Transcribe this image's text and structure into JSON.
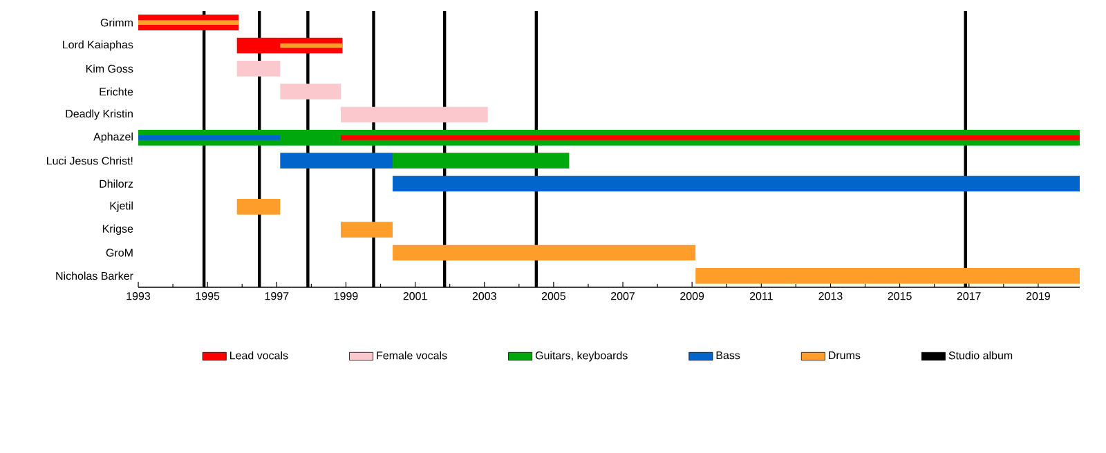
{
  "chart_data": {
    "type": "bar",
    "orientation": "horizontal",
    "categories": [
      "Grimm",
      "Lord Kaiaphas",
      "Kim Goss",
      "Erichte",
      "Deadly Kristin",
      "Aphazel",
      "Luci Jesus Christ!",
      "Dhilorz",
      "Kjetil",
      "Krigse",
      "GroM",
      "Nicholas Barker"
    ],
    "series": [
      {
        "name": "Lead vocals",
        "color": "#ff0000",
        "base": [
          1993,
          1995.85,
          null,
          null,
          null,
          null,
          null,
          null,
          null,
          null,
          null,
          null
        ],
        "values": [
          2.9,
          3.05,
          null,
          null,
          null,
          null,
          null,
          null,
          null,
          null,
          null,
          null
        ]
      },
      {
        "name": "Female vocals",
        "color": "#fbc9cd",
        "base": [
          null,
          null,
          1995.85,
          1997.1,
          1998.85,
          null,
          null,
          null,
          null,
          null,
          null,
          null
        ],
        "values": [
          null,
          null,
          1.25,
          1.75,
          4.25,
          null,
          null,
          null,
          null,
          null,
          null,
          null
        ]
      },
      {
        "name": "Guitars, keyboards",
        "color": "#00a80e",
        "base": [
          null,
          null,
          null,
          null,
          null,
          1993,
          2000.35,
          null,
          null,
          null,
          null,
          null
        ],
        "values": [
          null,
          null,
          null,
          null,
          null,
          27.2,
          5.1,
          null,
          null,
          null,
          null,
          null
        ]
      },
      {
        "name": "Bass",
        "color": "#0066cc",
        "base": [
          null,
          null,
          null,
          null,
          null,
          null,
          1997.1,
          2000.35,
          null,
          null,
          null,
          null
        ],
        "values": [
          null,
          null,
          null,
          null,
          null,
          null,
          3.25,
          19.85,
          null,
          null,
          null,
          null
        ]
      },
      {
        "name": "Drums",
        "color": "#ff9e2a",
        "base": [
          null,
          null,
          null,
          null,
          null,
          null,
          null,
          null,
          1995.85,
          1998.85,
          2000.35,
          2009.1
        ],
        "values": [
          null,
          null,
          null,
          null,
          null,
          null,
          null,
          null,
          1.25,
          1.5,
          8.75,
          11.1
        ]
      },
      {
        "color": "#ff9e2a",
        "base": [
          1993,
          1997.1,
          null,
          null,
          null,
          null,
          null,
          null,
          null,
          null,
          null,
          null
        ],
        "values": [
          2.9,
          1.8,
          null,
          null,
          null,
          null,
          null,
          null,
          null,
          null,
          null,
          null
        ]
      },
      {
        "color": "#0066cc",
        "base": [
          null,
          null,
          null,
          null,
          null,
          1993,
          null,
          null,
          null,
          null,
          null,
          null
        ],
        "values": [
          null,
          null,
          null,
          null,
          null,
          4.1,
          null,
          null,
          null,
          null,
          null,
          null
        ]
      },
      {
        "color": "#ff0000",
        "base": [
          null,
          null,
          null,
          null,
          null,
          1998.85,
          null,
          null,
          null,
          null,
          null,
          null
        ],
        "values": [
          null,
          null,
          null,
          null,
          null,
          21.35,
          null,
          null,
          null,
          null,
          null,
          null
        ]
      }
    ],
    "xlim": [
      1993,
      2020.2
    ],
    "xticks": [
      1993,
      1995,
      1997,
      1999,
      2001,
      2003,
      2005,
      2007,
      2009,
      2011,
      2013,
      2015,
      2017,
      2019
    ],
    "ref_lines": [
      {
        "axis": "x",
        "value": 1994.9,
        "color": "#000000",
        "label": "Studio album"
      },
      {
        "axis": "x",
        "value": 1996.5,
        "color": "#000000"
      },
      {
        "axis": "x",
        "value": 1997.9,
        "color": "#000000"
      },
      {
        "axis": "x",
        "value": 1999.8,
        "color": "#000000"
      },
      {
        "axis": "x",
        "value": 2001.85,
        "color": "#000000"
      },
      {
        "axis": "x",
        "value": 2004.5,
        "color": "#000000"
      },
      {
        "axis": "x",
        "value": 2016.9,
        "color": "#000000"
      }
    ],
    "legend": "bottom"
  }
}
